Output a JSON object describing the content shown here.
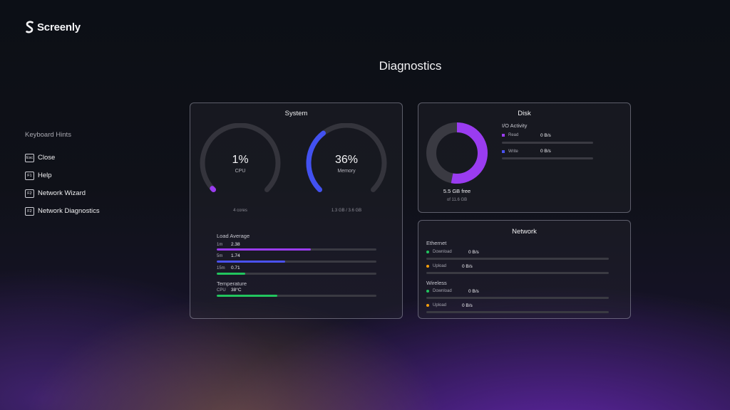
{
  "app": {
    "name": "Screenly"
  },
  "page": {
    "title": "Diagnostics"
  },
  "hints": {
    "title": "Keyboard Hints",
    "items": [
      {
        "key": "Esc",
        "label": "Close"
      },
      {
        "key": "F1",
        "label": "Help"
      },
      {
        "key": "F2",
        "label": "Network Wizard"
      },
      {
        "key": "F2",
        "label": "Network Diagnostics"
      }
    ]
  },
  "system": {
    "title": "System",
    "cpu": {
      "value": "1%",
      "label": "CPU",
      "note": "4 cores",
      "percent": 1,
      "color": "#9a3cf0"
    },
    "memory": {
      "value": "36%",
      "label": "Memory",
      "note": "1.3 GB / 3.6 GB",
      "percent": 36,
      "color": "#4251f0"
    },
    "load": {
      "title": "Load Average",
      "rows": [
        {
          "label": "1m",
          "value": "2.38",
          "fraction": 0.59,
          "color": "#9a3cf0"
        },
        {
          "label": "5m",
          "value": "1.74",
          "fraction": 0.43,
          "color": "#4a52f0"
        },
        {
          "label": "15m",
          "value": "0.71",
          "fraction": 0.18,
          "color": "#22c55e"
        }
      ]
    },
    "temperature": {
      "title": "Temperature",
      "label": "CPU",
      "value": "38°C",
      "fraction": 0.38,
      "color": "#22c55e"
    }
  },
  "disk": {
    "title": "Disk",
    "free": "5.5 GB free",
    "total": "of 11.6 GB",
    "used_fraction": 0.53,
    "used_color": "#9a3cf0",
    "io": {
      "title": "I/O Activity",
      "read": {
        "label": "Read",
        "value": "0 B/s",
        "color": "#9a3cf0"
      },
      "write": {
        "label": "Write",
        "value": "0 B/s",
        "color": "#4a52f0"
      }
    }
  },
  "network": {
    "title": "Network",
    "ethernet": {
      "title": "Ethernet",
      "download": {
        "label": "Download",
        "value": "0 B/s",
        "color": "#22c55e"
      },
      "upload": {
        "label": "Upload",
        "value": "0 B/s",
        "color": "#f59e0b"
      }
    },
    "wireless": {
      "title": "Wireless",
      "download": {
        "label": "Download",
        "value": "0 B/s",
        "color": "#22c55e"
      },
      "upload": {
        "label": "Upload",
        "value": "0 B/s",
        "color": "#f59e0b"
      }
    }
  }
}
